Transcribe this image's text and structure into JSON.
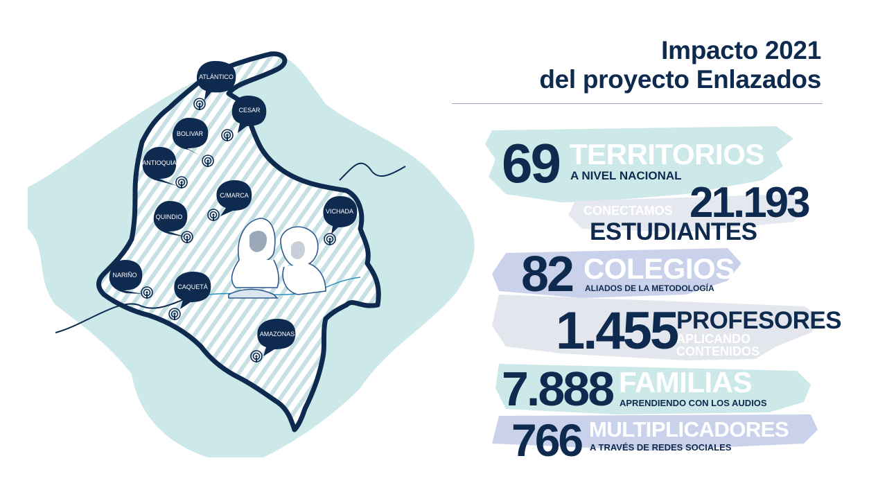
{
  "header": {
    "title_line1": "Impacto 2021",
    "title_line2": "del proyecto Enlazados"
  },
  "map": {
    "regions": [
      "ATLÁNTICO",
      "CESAR",
      "BOLIVAR",
      "ANTIOQUIA",
      "C/MARCA",
      "VICHADA",
      "QUINDIO",
      "NARIÑO",
      "CAQUETÁ",
      "AMAZONAS"
    ],
    "icon": "podcast-icon"
  },
  "stats": [
    {
      "number": "69",
      "category": "TERRITORIOS",
      "detail": "A NIVEL NACIONAL"
    },
    {
      "number": "21.193",
      "category": "ESTUDIANTES",
      "detail": "CONECTAMOS"
    },
    {
      "number": "82",
      "category": "COLEGIOS",
      "detail": "ALIADOS DE LA METODOLOGÍA"
    },
    {
      "number": "1.455",
      "category": "PROFESORES",
      "detail_line1": "APLICANDO",
      "detail_line2": "CONTENIDOS"
    },
    {
      "number": "7.888",
      "category": "FAMILIAS",
      "detail": "APRENDIENDO CON LOS AUDIOS"
    },
    {
      "number": "766",
      "category": "MULTIPLICADORES",
      "detail": "A TRAVÉS DE REDES SOCIALES"
    }
  ],
  "colors": {
    "navy": "#0e2a4f",
    "mint": "#cde8e9",
    "lavender": "#c9d2ea",
    "gray_brush": "#e4e6ee"
  }
}
